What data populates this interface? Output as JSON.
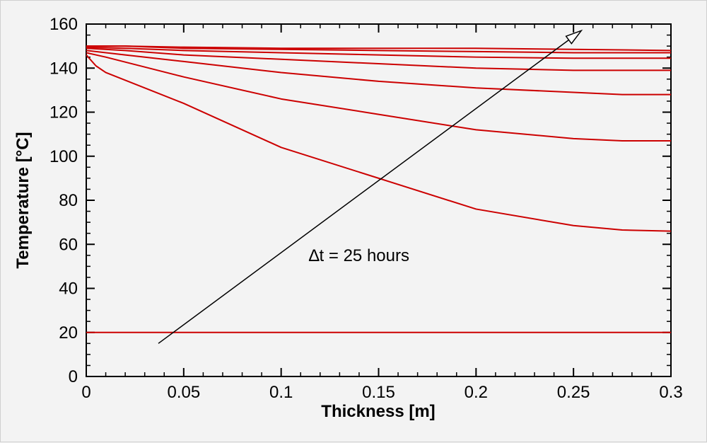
{
  "chart_data": {
    "type": "line",
    "title": "",
    "xlabel": "Thickness [m]",
    "ylabel": "Temperature [°C]",
    "xlim": [
      0,
      0.3
    ],
    "ylim": [
      0,
      160
    ],
    "xticks": [
      0,
      0.05,
      0.1,
      0.15,
      0.2,
      0.25,
      0.3
    ],
    "xtick_labels": [
      "0",
      "0.05",
      "0.1",
      "0.15",
      "0.2",
      "0.25",
      "0.3"
    ],
    "yticks": [
      0,
      20,
      40,
      60,
      80,
      100,
      120,
      140,
      160
    ],
    "ytick_labels": [
      "0",
      "20",
      "40",
      "60",
      "80",
      "100",
      "120",
      "140",
      "160"
    ],
    "line_color": "#cc0000",
    "series": [
      {
        "name": "t0",
        "x": [
          0,
          0.3
        ],
        "y": [
          20,
          20
        ]
      },
      {
        "name": "t1",
        "x": [
          0,
          0.005,
          0.01,
          0.05,
          0.1,
          0.15,
          0.2,
          0.25,
          0.275,
          0.3
        ],
        "y": [
          146,
          141,
          138,
          124,
          104,
          90,
          76,
          68.5,
          66.5,
          66
        ]
      },
      {
        "name": "t2",
        "x": [
          0,
          0.01,
          0.05,
          0.1,
          0.15,
          0.2,
          0.25,
          0.275,
          0.3
        ],
        "y": [
          147,
          145,
          136,
          126,
          119,
          112,
          108,
          107,
          107
        ]
      },
      {
        "name": "t3",
        "x": [
          0,
          0.02,
          0.05,
          0.1,
          0.15,
          0.2,
          0.25,
          0.275,
          0.3
        ],
        "y": [
          148,
          146,
          143,
          138,
          134,
          131,
          129,
          128,
          128
        ]
      },
      {
        "name": "t4",
        "x": [
          0,
          0.02,
          0.05,
          0.1,
          0.15,
          0.2,
          0.25,
          0.3
        ],
        "y": [
          149,
          148,
          146,
          144,
          142,
          140,
          139,
          139
        ]
      },
      {
        "name": "t5",
        "x": [
          0,
          0.02,
          0.05,
          0.1,
          0.15,
          0.2,
          0.25,
          0.3
        ],
        "y": [
          149.5,
          149,
          148,
          147,
          146,
          145,
          144.5,
          144.5
        ]
      },
      {
        "name": "t6",
        "x": [
          0,
          0.02,
          0.05,
          0.1,
          0.15,
          0.2,
          0.25,
          0.3
        ],
        "y": [
          150,
          150,
          149,
          148.5,
          148,
          147.5,
          147,
          147
        ]
      },
      {
        "name": "t7",
        "x": [
          0,
          0.02,
          0.05,
          0.1,
          0.15,
          0.2,
          0.25,
          0.3
        ],
        "y": [
          150,
          150,
          149.5,
          149,
          149,
          149,
          148.5,
          148
        ]
      }
    ],
    "annotation": {
      "text": "∆t = 25 hours",
      "x": 0.14,
      "y": 55
    },
    "arrow": {
      "from": [
        0.037,
        15
      ],
      "to": [
        0.254,
        157
      ]
    }
  }
}
